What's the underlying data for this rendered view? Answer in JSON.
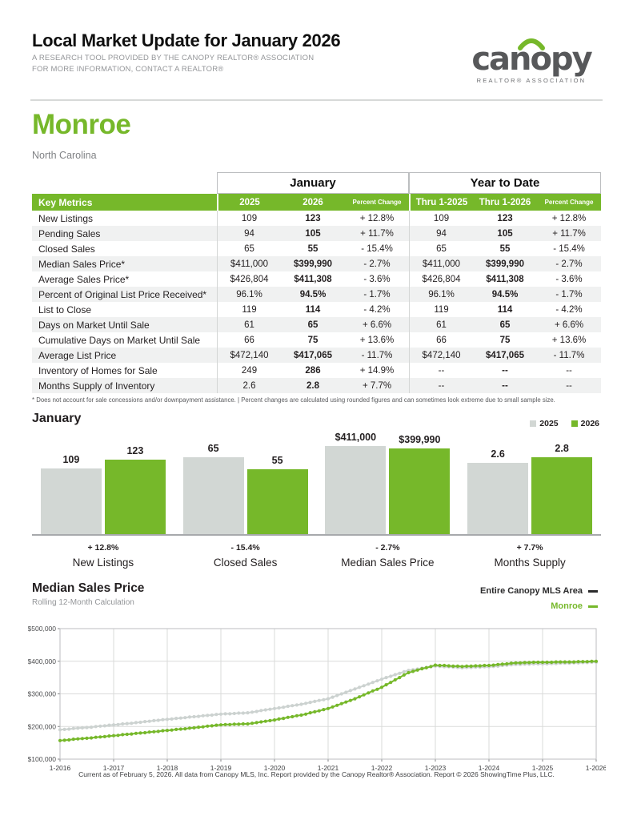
{
  "header": {
    "title": "Local Market Update for January 2026",
    "subtitle_line1": "A RESEARCH TOOL PROVIDED BY THE CANOPY REALTOR® ASSOCIATION",
    "subtitle_line2": "FOR MORE INFORMATION, CONTACT A REALTOR®",
    "logo": {
      "wordmark": "canopy",
      "tagline": "REALTOR® ASSOCIATION"
    }
  },
  "location": {
    "name": "Monroe",
    "state": "North Carolina"
  },
  "colors": {
    "brand_green": "#76b82a",
    "bar_gray": "#d2d7d4",
    "line_gray": "#ccd2d0",
    "legend_dark": "#2b2b2c"
  },
  "table": {
    "group_headers": [
      "January",
      "Year to Date"
    ],
    "key_metrics_label": "Key Metrics",
    "columns": [
      "2025",
      "2026",
      "Percent Change",
      "Thru 1-2025",
      "Thru 1-2026",
      "Percent Change"
    ],
    "rows": [
      {
        "metric": "New Listings",
        "values": [
          "109",
          "123",
          "+ 12.8%",
          "109",
          "123",
          "+ 12.8%"
        ]
      },
      {
        "metric": "Pending Sales",
        "values": [
          "94",
          "105",
          "+ 11.7%",
          "94",
          "105",
          "+ 11.7%"
        ]
      },
      {
        "metric": "Closed Sales",
        "values": [
          "65",
          "55",
          "- 15.4%",
          "65",
          "55",
          "- 15.4%"
        ]
      },
      {
        "metric": "Median Sales Price*",
        "values": [
          "$411,000",
          "$399,990",
          "- 2.7%",
          "$411,000",
          "$399,990",
          "- 2.7%"
        ]
      },
      {
        "metric": "Average Sales Price*",
        "values": [
          "$426,804",
          "$411,308",
          "- 3.6%",
          "$426,804",
          "$411,308",
          "- 3.6%"
        ]
      },
      {
        "metric": "Percent of Original List Price Received*",
        "values": [
          "96.1%",
          "94.5%",
          "- 1.7%",
          "96.1%",
          "94.5%",
          "- 1.7%"
        ]
      },
      {
        "metric": "List to Close",
        "values": [
          "119",
          "114",
          "- 4.2%",
          "119",
          "114",
          "- 4.2%"
        ]
      },
      {
        "metric": "Days on Market Until Sale",
        "values": [
          "61",
          "65",
          "+ 6.6%",
          "61",
          "65",
          "+ 6.6%"
        ]
      },
      {
        "metric": "Cumulative Days on Market Until Sale",
        "values": [
          "66",
          "75",
          "+ 13.6%",
          "66",
          "75",
          "+ 13.6%"
        ]
      },
      {
        "metric": "Average List Price",
        "values": [
          "$472,140",
          "$417,065",
          "- 11.7%",
          "$472,140",
          "$417,065",
          "- 11.7%"
        ]
      },
      {
        "metric": "Inventory of Homes for Sale",
        "values": [
          "249",
          "286",
          "+ 14.9%",
          "--",
          "--",
          "--"
        ]
      },
      {
        "metric": "Months Supply of Inventory",
        "values": [
          "2.6",
          "2.8",
          "+ 7.7%",
          "--",
          "--",
          "--"
        ]
      }
    ],
    "footnote": "* Does not account for sale concessions and/or downpayment assistance.  |  Percent changes are calculated using rounded figures and can sometimes look extreme due to small sample size."
  },
  "chart_data": [
    {
      "type": "bar",
      "title": "January",
      "legend": [
        {
          "label": "2025",
          "color": "#d2d7d4"
        },
        {
          "label": "2026",
          "color": "#76b82a"
        }
      ],
      "groups": [
        {
          "label": "New Listings",
          "change": "+ 12.8%",
          "values": [
            109,
            123
          ],
          "display": [
            "109",
            "123"
          ]
        },
        {
          "label": "Closed Sales",
          "change": "- 15.4%",
          "values": [
            65,
            55
          ],
          "display": [
            "65",
            "55"
          ]
        },
        {
          "label": "Median Sales Price",
          "change": "- 2.7%",
          "values": [
            411000,
            399990
          ],
          "display": [
            "$411,000",
            "$399,990"
          ]
        },
        {
          "label": "Months Supply",
          "change": "+ 7.7%",
          "values": [
            2.6,
            2.8
          ],
          "display": [
            "2.6",
            "2.8"
          ]
        }
      ]
    },
    {
      "type": "line",
      "title": "Median Sales Price",
      "subtitle": "Rolling 12-Month Calculation",
      "unit": "USD thousands, estimated monthly rolling 12-month median",
      "months": 121,
      "y_min_thousands": 100,
      "y_max_thousands": 500,
      "y_tick_labels": [
        "$500,000",
        "$400,000",
        "$300,000",
        "$200,000",
        "$100,000"
      ],
      "x_tick_labels": [
        "1-2016",
        "1-2017",
        "1-2018",
        "1-2019",
        "1-2020",
        "1-2021",
        "1-2022",
        "1-2023",
        "1-2024",
        "1-2025",
        "1-2026"
      ],
      "legend": [
        {
          "label": "Entire Canopy MLS Area",
          "color": "#2b2b2c"
        },
        {
          "label": "Monroe",
          "color": "#76b82a"
        }
      ],
      "series": [
        {
          "name": "Entire Canopy MLS Area",
          "color": "#ccd2d0",
          "values_thousands": [
            190,
            191,
            192,
            194,
            195,
            196,
            197,
            198,
            200,
            201,
            202,
            204,
            205,
            206,
            208,
            209,
            210,
            212,
            213,
            215,
            216,
            218,
            219,
            221,
            222,
            223,
            225,
            226,
            227,
            229,
            230,
            231,
            233,
            234,
            235,
            237,
            238,
            239,
            239,
            240,
            241,
            241,
            242,
            244,
            246,
            249,
            251,
            253,
            255,
            257,
            259,
            262,
            264,
            266,
            268,
            271,
            274,
            277,
            280,
            282,
            285,
            290,
            295,
            300,
            305,
            310,
            315,
            320,
            325,
            330,
            335,
            340,
            345,
            350,
            354,
            359,
            363,
            368,
            372,
            374,
            376,
            379,
            381,
            383,
            385,
            384,
            383,
            383,
            382,
            381,
            380,
            381,
            381,
            382,
            382,
            383,
            383,
            384,
            385,
            387,
            388,
            389,
            390,
            390,
            391,
            391,
            392,
            392,
            392,
            392,
            393,
            393,
            394,
            394,
            394,
            395,
            395,
            396,
            396,
            397,
            397
          ]
        },
        {
          "name": "Monroe",
          "color": "#76b82a",
          "values_thousands": [
            157,
            158,
            159,
            161,
            162,
            163,
            164,
            165,
            167,
            168,
            169,
            171,
            172,
            173,
            175,
            176,
            177,
            179,
            180,
            181,
            183,
            184,
            185,
            187,
            188,
            189,
            191,
            192,
            193,
            195,
            196,
            198,
            199,
            201,
            202,
            204,
            205,
            206,
            206,
            207,
            207,
            208,
            208,
            210,
            212,
            214,
            216,
            218,
            220,
            223,
            225,
            228,
            230,
            233,
            235,
            238,
            242,
            245,
            248,
            252,
            255,
            260,
            265,
            270,
            275,
            280,
            285,
            291,
            297,
            303,
            309,
            314,
            320,
            328,
            335,
            343,
            350,
            358,
            365,
            369,
            373,
            377,
            380,
            384,
            388,
            387,
            387,
            386,
            385,
            385,
            384,
            385,
            385,
            386,
            386,
            387,
            387,
            388,
            390,
            391,
            392,
            394,
            395,
            395,
            396,
            396,
            397,
            397,
            397,
            397,
            397,
            398,
            398,
            398,
            398,
            398,
            399,
            399,
            399,
            400,
            400
          ]
        }
      ]
    }
  ],
  "footer": {
    "disclaimer": "Current as of February 5, 2026. All data from Canopy MLS, Inc. Report provided by the Canopy Realtor® Association. Report © 2026 ShowingTime Plus, LLC."
  }
}
